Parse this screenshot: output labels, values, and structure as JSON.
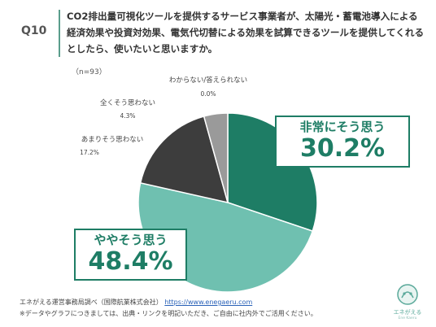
{
  "question": {
    "number": "Q10",
    "text": "CO2排出量可視化ツールを提供するサービス事業者が、太陽光・蓄電池導入による経済効果や投資対効果、電気代切替による効果を試算できるツールを提供してくれるとしたら、使いたいと思いますか。",
    "sample": "（n=93）"
  },
  "colors": {
    "accent": "#1e7d65",
    "very_much": "#1e7d65",
    "somewhat": "#6fc0b0",
    "not_much": "#3d3d3d",
    "not_at_all": "#9a9a9a",
    "unknown": "#d9d9d9"
  },
  "chart_data": {
    "type": "pie",
    "categories": [
      "非常にそう思う",
      "ややそう思う",
      "あまりそう思わない",
      "全くそう思わない",
      "わからない/答えられない"
    ],
    "values": [
      30.2,
      48.4,
      17.2,
      4.3,
      0.0
    ],
    "labels": [
      "非常にそう思う",
      "ややそう思う",
      "あまりそう思わない",
      "全くそう思わない",
      "わからない/答えられない"
    ],
    "value_labels": [
      "30.2%",
      "48.4%",
      "17.2%",
      "4.3%",
      "0.0%"
    ]
  },
  "footer": {
    "line1_prefix": "エネがえる運営事務局調べ（国際航業株式会社）",
    "line1_url": "https://www.enegaeru.com",
    "line2": "※データやグラフにつきましては、出典・リンクを明記いただき、ご自由に社内外でご活用ください。"
  },
  "logo": {
    "text": "エネがえる",
    "subtext": "Ene Kaeru"
  }
}
